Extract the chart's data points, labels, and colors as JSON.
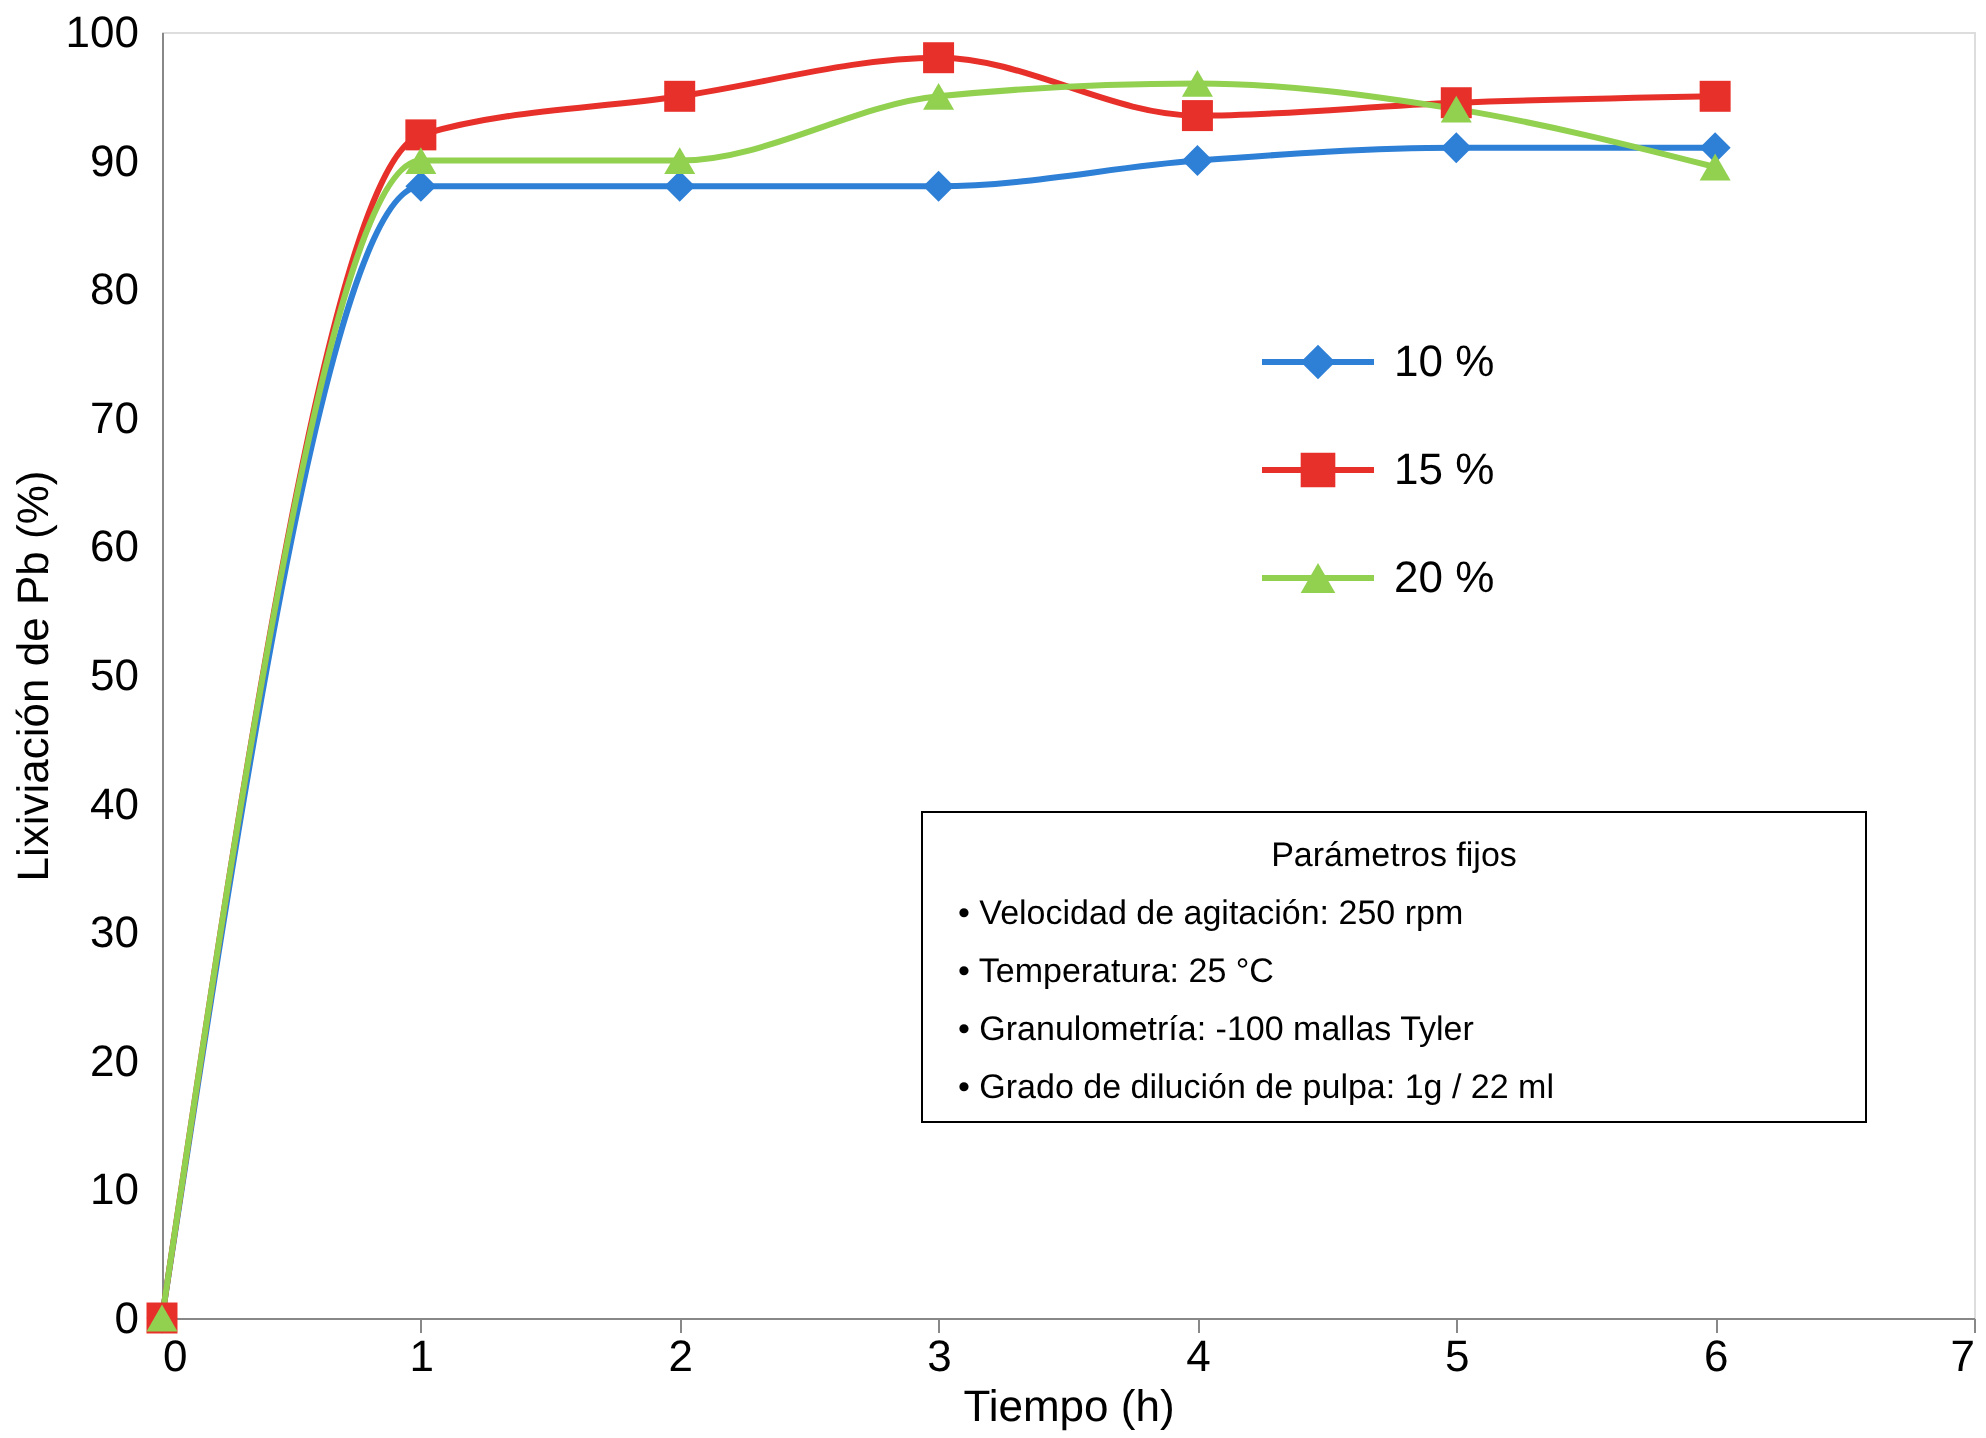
{
  "chart_data": {
    "type": "line",
    "xlabel": "Tiempo (h)",
    "ylabel": "Lixiviación de Pb (%)",
    "x": [
      0,
      1,
      2,
      3,
      4,
      5,
      6
    ],
    "series": [
      {
        "name": "10 %",
        "color": "#2e7fd6",
        "marker": "diamond",
        "values": [
          0,
          88,
          88,
          88,
          90,
          91,
          91
        ]
      },
      {
        "name": "15 %",
        "color": "#e8302a",
        "marker": "square",
        "values": [
          0,
          92,
          95,
          98,
          93.5,
          94.5,
          95
        ]
      },
      {
        "name": "20 %",
        "color": "#92d050",
        "marker": "triangle",
        "values": [
          0,
          90,
          90,
          95,
          96,
          94,
          89.5
        ]
      }
    ],
    "xlim": [
      0,
      7
    ],
    "xticks": [
      0,
      1,
      2,
      3,
      4,
      5,
      6,
      7
    ],
    "ylim": [
      0,
      100
    ],
    "yticks": [
      0,
      10,
      20,
      30,
      40,
      50,
      60,
      70,
      80,
      90,
      100
    ],
    "grid": false,
    "legend": "right",
    "line_style": "solid",
    "annotations": [
      "Parámetros fijos",
      "•  Velocidad de agitación: 250 rpm",
      "•  Temperatura: 25  °C",
      "•  Granulometría: -100 mallas Tyler",
      "•  Grado de dilución de pulpa: 1g / 22 ml"
    ]
  }
}
